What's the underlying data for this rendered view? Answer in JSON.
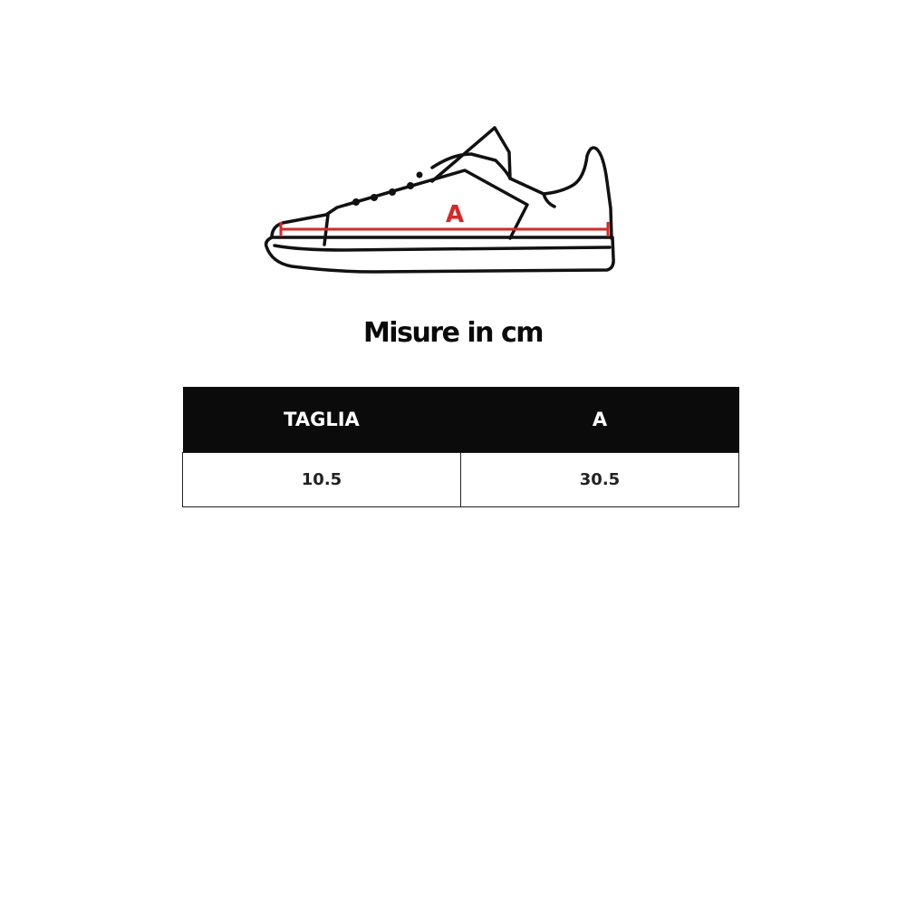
{
  "diagram": {
    "measure_label": "A",
    "measure_color": "#e02424"
  },
  "title": "Misure in cm",
  "table": {
    "headers": [
      "TAGLIA",
      "A"
    ],
    "rows": [
      [
        "10.5",
        "30.5"
      ]
    ]
  }
}
